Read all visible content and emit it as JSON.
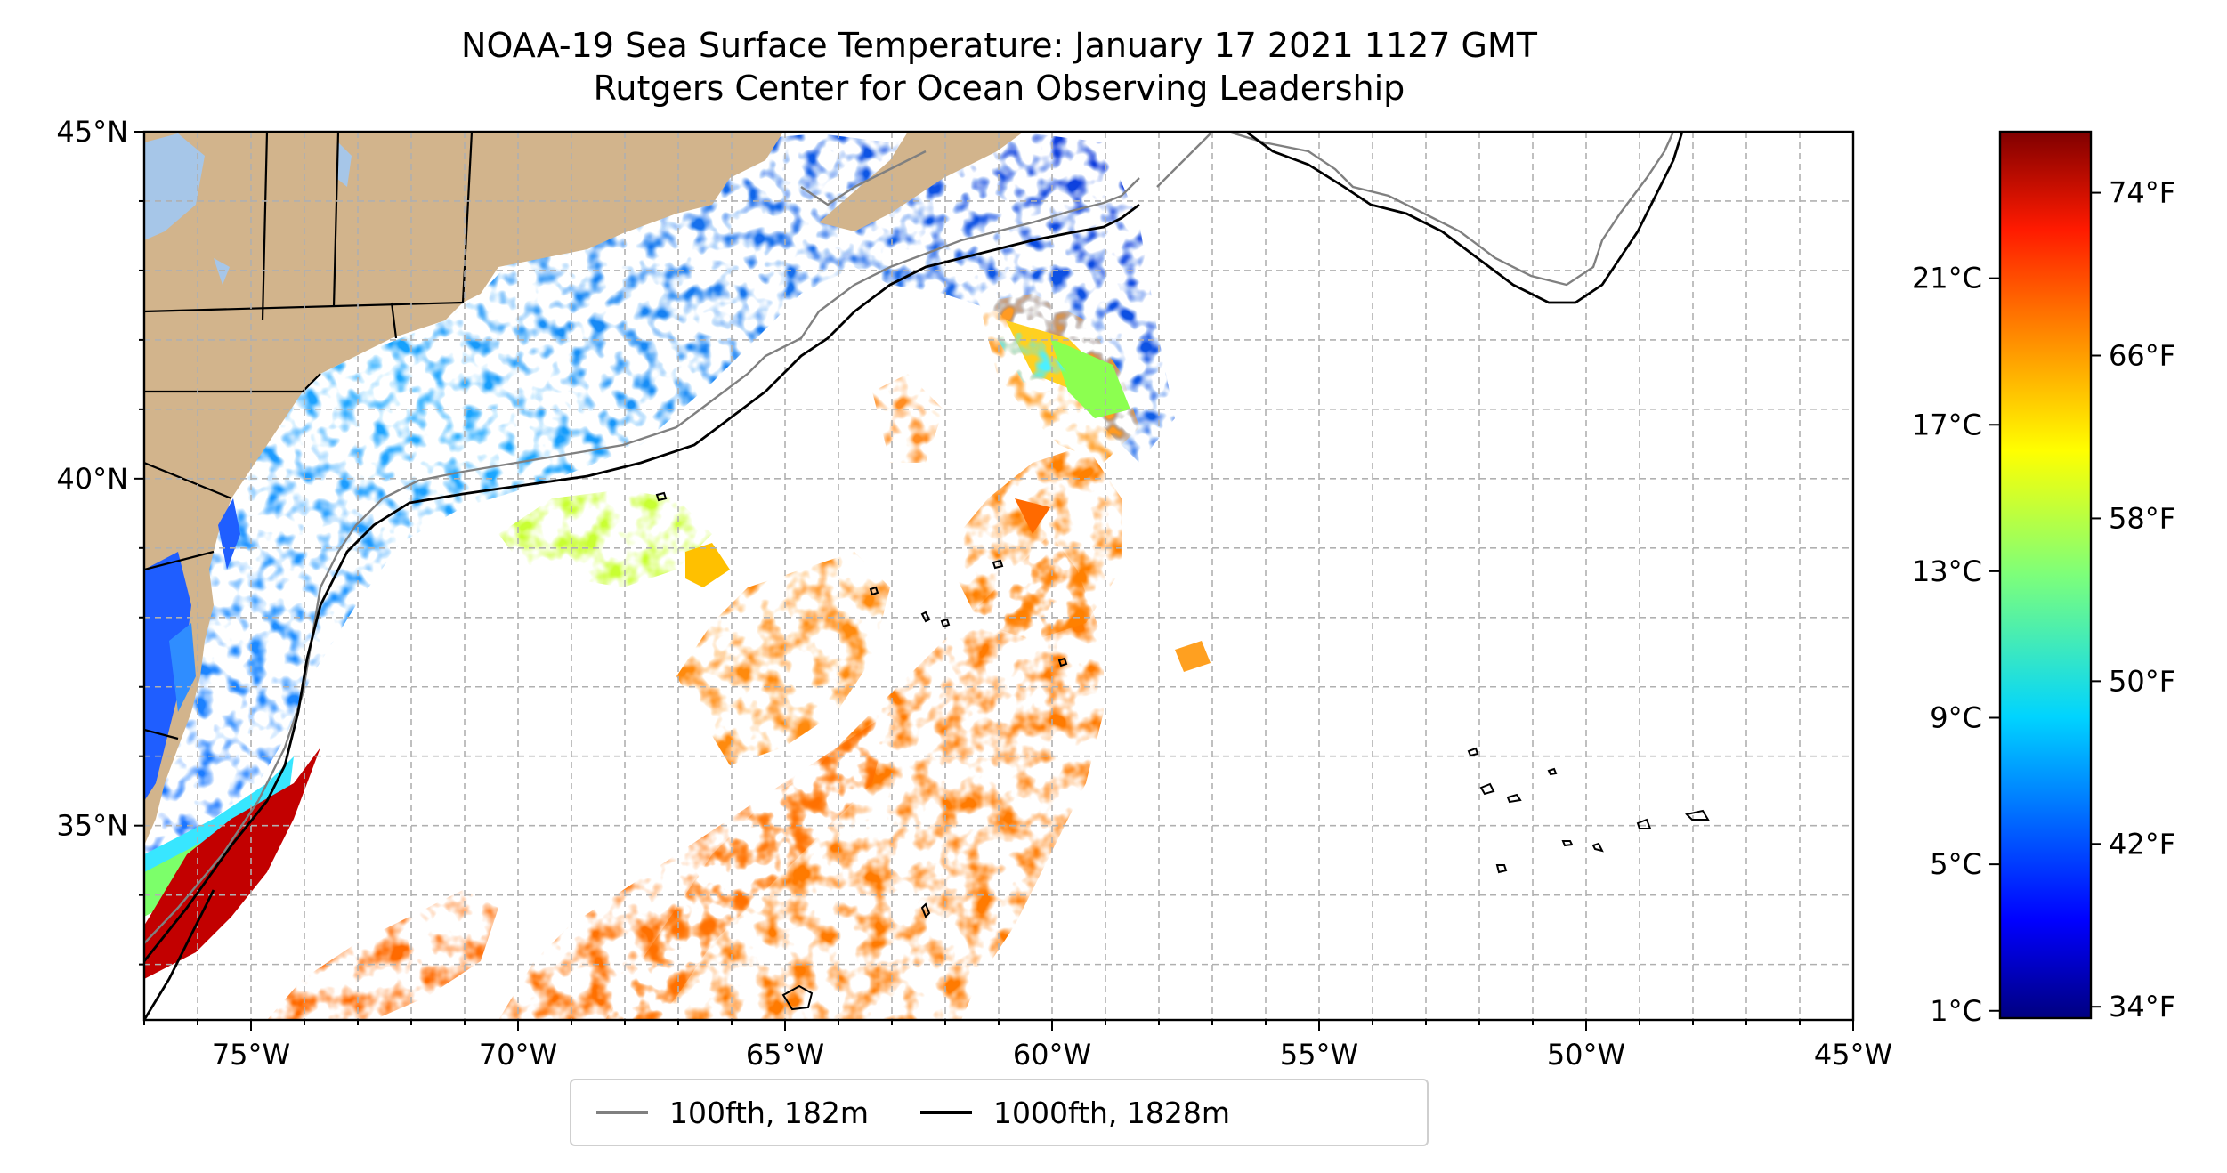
{
  "title": "NOAA-19 Sea Surface Temperature: January 17 2021 1127 GMT",
  "subtitle": "Rutgers Center for Ocean Observing Leadership",
  "colors": {
    "land": "#d2b48c",
    "lakes": "#a6c6e8",
    "grid": "#b0b0b0",
    "contour_100fth": "#808080",
    "contour_1000fth": "#000000",
    "colormap": [
      "#000080",
      "#0000ff",
      "#0080ff",
      "#00ffff",
      "#80ff80",
      "#ffff00",
      "#ff8000",
      "#ff0000",
      "#800000"
    ]
  },
  "map": {
    "projection": "equirectangular",
    "lon_range": [
      -77,
      -45
    ],
    "lat_range": [
      32.2,
      45
    ],
    "x_ticks": [
      {
        "lon": -75,
        "label": "75°W"
      },
      {
        "lon": -70,
        "label": "70°W"
      },
      {
        "lon": -65,
        "label": "65°W"
      },
      {
        "lon": -60,
        "label": "60°W"
      },
      {
        "lon": -55,
        "label": "55°W"
      },
      {
        "lon": -50,
        "label": "50°W"
      },
      {
        "lon": -45,
        "label": "45°W"
      }
    ],
    "y_ticks": [
      {
        "lat": 35,
        "label": "35°N"
      },
      {
        "lat": 40,
        "label": "40°N"
      },
      {
        "lat": 45,
        "label": "45°N"
      }
    ]
  },
  "colorbar": {
    "left_ticks": [
      {
        "value_c": 1,
        "label": "1°C"
      },
      {
        "value_c": 5,
        "label": "5°C"
      },
      {
        "value_c": 9,
        "label": "9°C"
      },
      {
        "value_c": 13,
        "label": "13°C"
      },
      {
        "value_c": 17,
        "label": "17°C"
      },
      {
        "value_c": 21,
        "label": "21°C"
      }
    ],
    "right_ticks": [
      {
        "value_f": 34,
        "label": "34°F"
      },
      {
        "value_f": 42,
        "label": "42°F"
      },
      {
        "value_f": 50,
        "label": "50°F"
      },
      {
        "value_f": 58,
        "label": "58°F"
      },
      {
        "value_f": 66,
        "label": "66°F"
      },
      {
        "value_f": 74,
        "label": "74°F"
      }
    ],
    "range_c": [
      0.8,
      25
    ]
  },
  "legend": {
    "items": [
      {
        "label": "100fth, 182m",
        "color": "#808080"
      },
      {
        "label": "1000fth, 1828m",
        "color": "#000000"
      }
    ]
  }
}
